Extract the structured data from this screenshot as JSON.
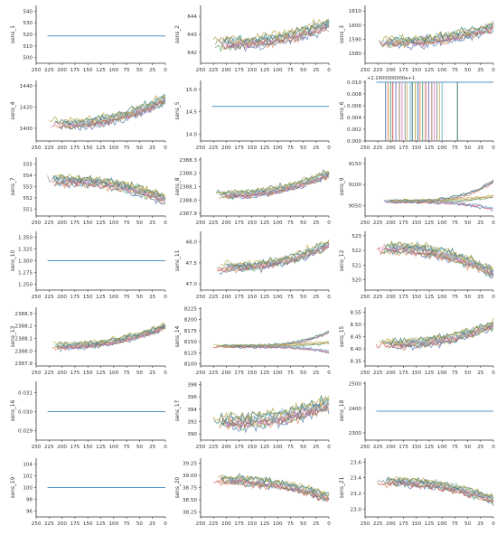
{
  "chart_data": [
    {
      "type": "line",
      "ylabel": "sens_1",
      "yticks": [
        500,
        510,
        520,
        530,
        540
      ],
      "ylim": [
        495,
        545
      ],
      "xticks": [
        250,
        225,
        200,
        175,
        150,
        125,
        100,
        75,
        50,
        25,
        0
      ],
      "xlim": [
        250,
        0
      ],
      "baseline": 518.67,
      "trend": "flat"
    },
    {
      "type": "line",
      "ylabel": "sens_2",
      "yticks": [
        642,
        643,
        644
      ],
      "ylim": [
        641.4,
        644.6
      ],
      "xticks": [
        250,
        225,
        200,
        175,
        150,
        125,
        100,
        75,
        50,
        25,
        0
      ],
      "xlim": [
        250,
        0
      ],
      "baseline": 642.5,
      "end": 643.6,
      "noise": 0.35,
      "trend": "up"
    },
    {
      "type": "line",
      "ylabel": "sens_3",
      "yticks": [
        1580,
        1590,
        1600,
        1610
      ],
      "ylim": [
        1573,
        1614
      ],
      "xticks": [
        250,
        225,
        200,
        175,
        150,
        125,
        100,
        75,
        50,
        25,
        0
      ],
      "xlim": [
        250,
        0
      ],
      "baseline": 1588,
      "end": 1599,
      "noise": 4,
      "trend": "up"
    },
    {
      "type": "line",
      "ylabel": "sens_4",
      "yticks": [
        1400,
        1420,
        1440
      ],
      "ylim": [
        1388,
        1445
      ],
      "xticks": [
        250,
        225,
        200,
        175,
        150,
        125,
        100,
        75,
        50,
        25,
        0
      ],
      "xlim": [
        250,
        0
      ],
      "baseline": 1404,
      "end": 1428,
      "noise": 5,
      "trend": "up"
    },
    {
      "type": "line",
      "ylabel": "sens_5",
      "yticks": [
        14.0,
        14.5,
        15.0
      ],
      "ylim": [
        13.85,
        15.2
      ],
      "xticks": [
        250,
        225,
        200,
        175,
        150,
        125,
        100,
        75,
        50,
        25,
        0
      ],
      "xlim": [
        250,
        0
      ],
      "baseline": 14.62,
      "trend": "flat"
    },
    {
      "type": "line",
      "ylabel": "sens_6",
      "offset_label": "+2.1600000000e+1",
      "yticks": [
        0.0,
        0.002,
        0.004,
        0.006,
        0.008,
        0.01
      ],
      "ylim": [
        0,
        0.0103
      ],
      "xticks": [
        250,
        225,
        200,
        175,
        150,
        125,
        100,
        75,
        50,
        25,
        0
      ],
      "xlim": [
        250,
        0
      ],
      "baseline": 0.01,
      "trend": "spikes"
    },
    {
      "type": "line",
      "ylabel": "sens_7",
      "yticks": [
        551,
        552,
        553,
        554,
        555
      ],
      "ylim": [
        550.4,
        555.6
      ],
      "xticks": [
        250,
        225,
        200,
        175,
        150,
        125,
        100,
        75,
        50,
        25,
        0
      ],
      "xlim": [
        250,
        0
      ],
      "baseline": 553.6,
      "end": 551.9,
      "noise": 0.5,
      "trend": "down"
    },
    {
      "type": "line",
      "ylabel": "sens_8",
      "yticks": [
        2387.9,
        2388.0,
        2388.1,
        2388.2,
        2388.3
      ],
      "ylim": [
        2387.88,
        2388.32
      ],
      "xticks": [
        250,
        225,
        200,
        175,
        150,
        125,
        100,
        75,
        50,
        25,
        0
      ],
      "xlim": [
        250,
        0
      ],
      "baseline": 2388.04,
      "end": 2388.2,
      "noise": 0.03,
      "trend": "up"
    },
    {
      "type": "line",
      "ylabel": "sens_9",
      "yticks": [
        9050,
        9100,
        9150
      ],
      "ylim": [
        9025,
        9165
      ],
      "xticks": [
        250,
        225,
        200,
        175,
        150,
        125,
        100,
        75,
        50,
        25,
        0
      ],
      "xlim": [
        250,
        0
      ],
      "baseline": 9060,
      "end": 9090,
      "noise": 5,
      "trend": "fan"
    },
    {
      "type": "line",
      "ylabel": "sens_10",
      "yticks": [
        1.25,
        1.275,
        1.3,
        1.325,
        1.35
      ],
      "ylim": [
        1.238,
        1.362
      ],
      "xticks": [
        250,
        225,
        200,
        175,
        150,
        125,
        100,
        75,
        50,
        25,
        0
      ],
      "xlim": [
        250,
        0
      ],
      "baseline": 1.3,
      "trend": "flat"
    },
    {
      "type": "line",
      "ylabel": "sens_11",
      "yticks": [
        47.0,
        47.5,
        48.0
      ],
      "ylim": [
        46.85,
        48.25
      ],
      "xticks": [
        250,
        225,
        200,
        175,
        150,
        125,
        100,
        75,
        50,
        25,
        0
      ],
      "xlim": [
        250,
        0
      ],
      "baseline": 47.4,
      "end": 47.95,
      "noise": 0.12,
      "trend": "up"
    },
    {
      "type": "line",
      "ylabel": "sens_12",
      "yticks": [
        520,
        521,
        522,
        523
      ],
      "ylim": [
        519.3,
        523.3
      ],
      "xticks": [
        250,
        225,
        200,
        175,
        150,
        125,
        100,
        75,
        50,
        25,
        0
      ],
      "xlim": [
        250,
        0
      ],
      "baseline": 522.2,
      "end": 520.5,
      "noise": 0.4,
      "trend": "down"
    },
    {
      "type": "line",
      "ylabel": "sens_13",
      "yticks": [
        2387.9,
        2388.0,
        2388.1,
        2388.2,
        2388.3
      ],
      "ylim": [
        2387.88,
        2388.35
      ],
      "xticks": [
        250,
        225,
        200,
        175,
        150,
        125,
        100,
        75,
        50,
        25,
        0
      ],
      "xlim": [
        250,
        0
      ],
      "baseline": 2388.04,
      "end": 2388.2,
      "noise": 0.03,
      "trend": "up"
    },
    {
      "type": "line",
      "ylabel": "sens_14",
      "yticks": [
        8100,
        8125,
        8150,
        8175,
        8200,
        8225
      ],
      "ylim": [
        8095,
        8228
      ],
      "xticks": [
        250,
        225,
        200,
        175,
        150,
        125,
        100,
        75,
        50,
        25,
        0
      ],
      "xlim": [
        250,
        0
      ],
      "baseline": 8140,
      "end": 8160,
      "noise": 4,
      "trend": "fan"
    },
    {
      "type": "line",
      "ylabel": "sens_15",
      "yticks": [
        8.35,
        8.4,
        8.45,
        8.5,
        8.55
      ],
      "ylim": [
        8.33,
        8.57
      ],
      "xticks": [
        250,
        225,
        200,
        175,
        150,
        125,
        100,
        75,
        50,
        25,
        0
      ],
      "xlim": [
        250,
        0
      ],
      "baseline": 8.42,
      "end": 8.5,
      "noise": 0.02,
      "trend": "up"
    },
    {
      "type": "line",
      "ylabel": "sens_16",
      "yticks": [
        0.029,
        0.03,
        0.031
      ],
      "ylim": [
        0.0285,
        0.0316
      ],
      "xticks": [
        250,
        225,
        200,
        175,
        150,
        125,
        100,
        75,
        50,
        25,
        0
      ],
      "xlim": [
        250,
        0
      ],
      "baseline": 0.03,
      "trend": "flat"
    },
    {
      "type": "line",
      "ylabel": "sens_17",
      "yticks": [
        390,
        392,
        394,
        396,
        398
      ],
      "ylim": [
        389,
        398.5
      ],
      "xticks": [
        250,
        225,
        200,
        175,
        150,
        125,
        100,
        75,
        50,
        25,
        0
      ],
      "xlim": [
        250,
        0
      ],
      "baseline": 392,
      "end": 395,
      "noise": 1.3,
      "trend": "step"
    },
    {
      "type": "line",
      "ylabel": "sens_18",
      "yticks": [
        2300,
        2400,
        2500
      ],
      "ylim": [
        2270,
        2510
      ],
      "xticks": [
        250,
        225,
        200,
        175,
        150,
        125,
        100,
        75,
        50,
        25,
        0
      ],
      "xlim": [
        250,
        0
      ],
      "baseline": 2388,
      "trend": "flat"
    },
    {
      "type": "line",
      "ylabel": "sens_19",
      "yticks": [
        96,
        98,
        100,
        102,
        104
      ],
      "ylim": [
        95,
        105
      ],
      "xticks": [
        250,
        225,
        200,
        175,
        150,
        125,
        100,
        75,
        50,
        25,
        0
      ],
      "xlim": [
        250,
        0
      ],
      "baseline": 100,
      "trend": "flat"
    },
    {
      "type": "line",
      "ylabel": "sens_20",
      "yticks": [
        38.25,
        38.5,
        38.75,
        39.0,
        39.25
      ],
      "ylim": [
        38.15,
        39.35
      ],
      "xticks": [
        250,
        225,
        200,
        175,
        150,
        125,
        100,
        75,
        50,
        25,
        0
      ],
      "xlim": [
        250,
        0
      ],
      "baseline": 38.9,
      "end": 38.55,
      "noise": 0.1,
      "trend": "down"
    },
    {
      "type": "line",
      "ylabel": "sens_21",
      "yticks": [
        23.0,
        23.2,
        23.4,
        23.6
      ],
      "ylim": [
        22.9,
        23.65
      ],
      "xticks": [
        250,
        225,
        200,
        175,
        150,
        125,
        100,
        75,
        50,
        25,
        0
      ],
      "xlim": [
        250,
        0
      ],
      "baseline": 23.35,
      "end": 23.12,
      "noise": 0.06,
      "trend": "down"
    }
  ],
  "series_colors": [
    "#4c72b0",
    "#dd8452",
    "#55a868",
    "#c44e52",
    "#8172b3",
    "#937860",
    "#da8bc3",
    "#8c8c8c",
    "#ccb974",
    "#64b5cd",
    "#2f6e6a",
    "#b5a33a"
  ],
  "flat_color": "#4c92c3",
  "flat_color_2": "#e6a23c"
}
